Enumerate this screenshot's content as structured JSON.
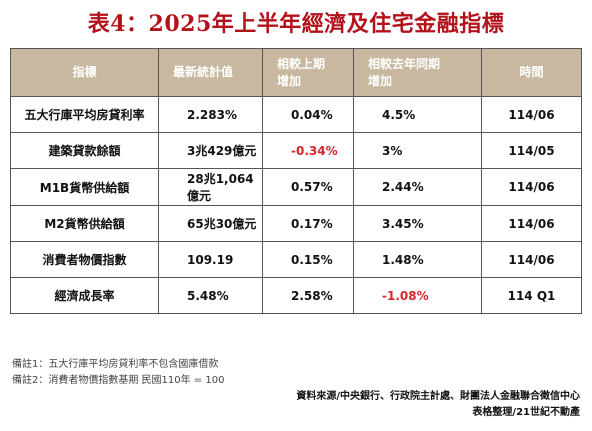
{
  "title": "表4：2025年上半年經濟及住宅金融指標",
  "headers": [
    "指標",
    "最新統計值",
    "相較上期\n增加",
    "相較去年同期\n增加",
    "時間"
  ],
  "rows": [
    {
      "indicator": "五大行庫平均房貸利率",
      "value": "2.283%",
      "vs_prev": "0.04%",
      "vs_prev_negative": false,
      "vs_year": "4.5%",
      "vs_year_negative": false,
      "time": "114/06"
    },
    {
      "indicator": "建築貸款餘額",
      "value": "3兆429億元",
      "vs_prev": "-0.34%",
      "vs_prev_negative": true,
      "vs_year": "3%",
      "vs_year_negative": false,
      "time": "114/05"
    },
    {
      "indicator": "M1B貨幣供給額",
      "value": "28兆1,064億元",
      "vs_prev": "0.57%",
      "vs_prev_negative": false,
      "vs_year": "2.44%",
      "vs_year_negative": false,
      "time": "114/06"
    },
    {
      "indicator": "M2貨幣供給額",
      "value": "65兆30億元",
      "vs_prev": "0.17%",
      "vs_prev_negative": false,
      "vs_year": "3.45%",
      "vs_year_negative": false,
      "time": "114/06"
    },
    {
      "indicator": "消費者物價指數",
      "value": "109.19",
      "vs_prev": "0.15%",
      "vs_prev_negative": false,
      "vs_year": "1.48%",
      "vs_year_negative": false,
      "time": "114/06"
    },
    {
      "indicator": "經濟成長率",
      "value": "5.48%",
      "vs_prev": "2.58%",
      "vs_prev_negative": false,
      "vs_year": "-1.08%",
      "vs_year_negative": true,
      "time": "114 Q1"
    }
  ],
  "notes": [
    "備註1：五大行庫平均房貸利率不包含國庫借款",
    "備註2：消費者物價指數基期 民國110年 = 100"
  ],
  "source": "資料來源/中央銀行、行政院主計處、財團法人金融聯合徵信中心",
  "credit": "表格整理/21世紀不動產",
  "colors": {
    "title": "#b3121b",
    "header_bg": "#c9b8a0",
    "negative": "#d9262c"
  }
}
